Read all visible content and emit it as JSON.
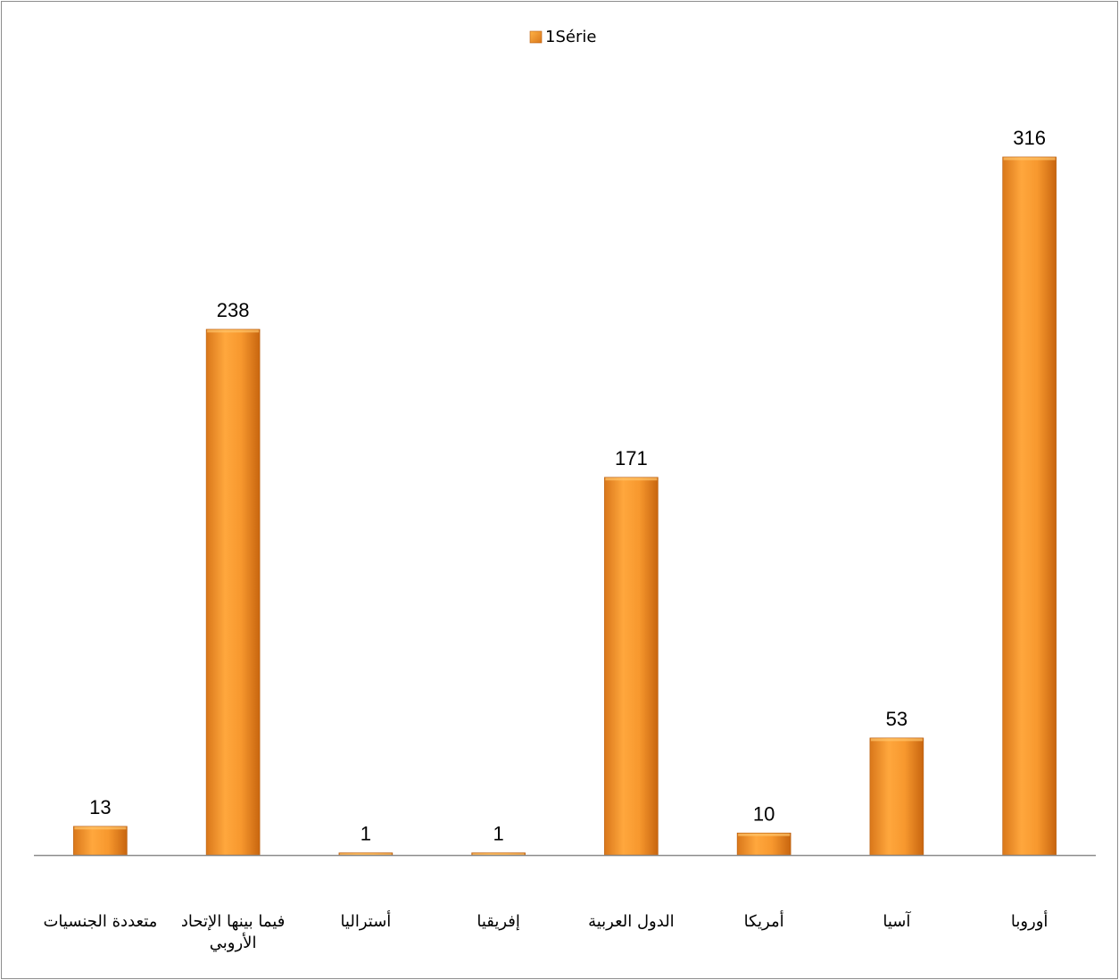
{
  "chart_data": {
    "type": "bar",
    "categories": [
      [
        "متعددة الجنسيات"
      ],
      [
        "فيما بينها الإتحاد",
        "الأروبي"
      ],
      [
        "أستراليا"
      ],
      [
        "إفريقيا"
      ],
      [
        "الدول العربية"
      ],
      [
        "أمريكا"
      ],
      [
        "آسيا"
      ],
      [
        "أوروبا"
      ]
    ],
    "series": [
      {
        "name": "1Série",
        "values": [
          13,
          238,
          1,
          1,
          171,
          10,
          53,
          316
        ],
        "color": "#f29a2e"
      }
    ],
    "ylim": [
      0,
      350
    ],
    "grid": false,
    "legend_position": "top-center",
    "colors": {
      "bar_light": "#ffb347",
      "bar_mid": "#f29a2e",
      "bar_dark": "#c96a12",
      "axis": "#8c8c8c"
    }
  }
}
